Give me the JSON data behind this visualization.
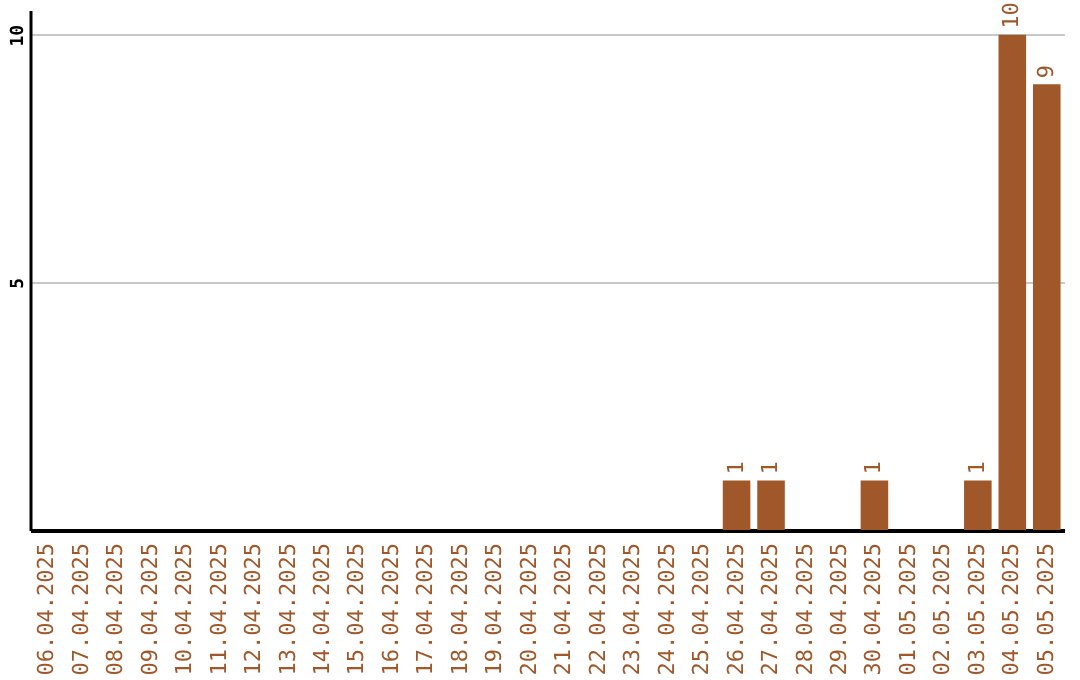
{
  "chart_data": {
    "type": "bar",
    "categories": [
      "06.04.2025",
      "07.04.2025",
      "08.04.2025",
      "09.04.2025",
      "10.04.2025",
      "11.04.2025",
      "12.04.2025",
      "13.04.2025",
      "14.04.2025",
      "15.04.2025",
      "16.04.2025",
      "17.04.2025",
      "18.04.2025",
      "19.04.2025",
      "20.04.2025",
      "21.04.2025",
      "22.04.2025",
      "23.04.2025",
      "24.04.2025",
      "25.04.2025",
      "26.04.2025",
      "27.04.2025",
      "28.04.2025",
      "29.04.2025",
      "30.04.2025",
      "01.05.2025",
      "02.05.2025",
      "03.05.2025",
      "04.05.2025",
      "05.05.2025"
    ],
    "values": [
      0,
      0,
      0,
      0,
      0,
      0,
      0,
      0,
      0,
      0,
      0,
      0,
      0,
      0,
      0,
      0,
      0,
      0,
      0,
      0,
      1,
      1,
      0,
      0,
      1,
      0,
      0,
      1,
      10,
      9
    ],
    "value_labels": [
      null,
      null,
      null,
      null,
      null,
      null,
      null,
      null,
      null,
      null,
      null,
      null,
      null,
      null,
      null,
      null,
      null,
      null,
      null,
      null,
      "1",
      "1",
      null,
      null,
      "1",
      null,
      null,
      "1",
      "10",
      "9"
    ],
    "color": "#a0582a",
    "ylim": [
      0,
      10.5
    ],
    "yticks": [
      5,
      10
    ],
    "grid": "y"
  }
}
